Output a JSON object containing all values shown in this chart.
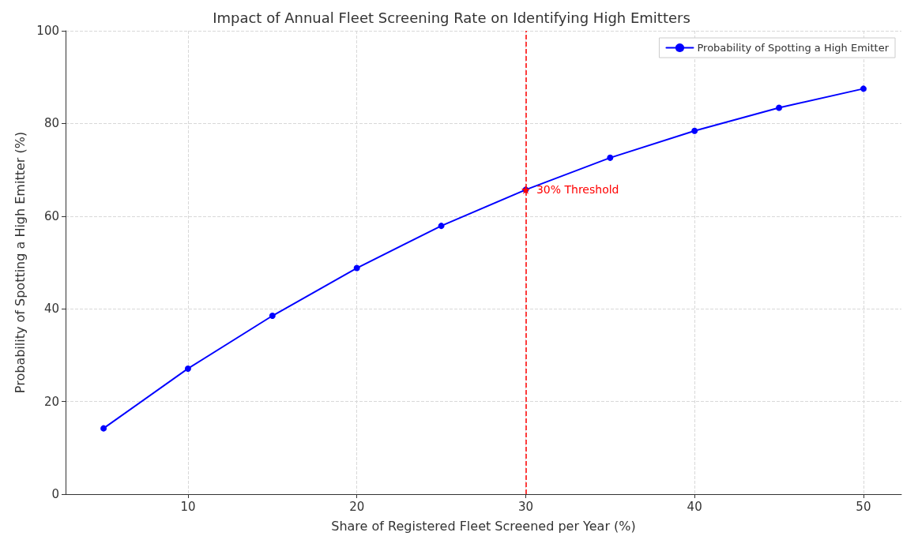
{
  "chart_data": {
    "type": "line",
    "title": "Impact of Annual Fleet Screening Rate on Identifying High Emitters",
    "xlabel": "Share of Registered Fleet Screened per Year (%)",
    "ylabel": "Probability of Spotting a High Emitter (%)",
    "x": [
      5,
      10,
      15,
      20,
      25,
      30,
      35,
      40,
      45,
      50
    ],
    "series": [
      {
        "name": "Probability of Spotting a High Emitter",
        "color": "#0000ff",
        "values": [
          14.2,
          27.1,
          38.5,
          48.8,
          57.9,
          65.7,
          72.6,
          78.4,
          83.4,
          87.5
        ]
      }
    ],
    "xlim": [
      2.75,
      52.25
    ],
    "xticks": [
      10,
      20,
      30,
      40,
      50
    ],
    "ylim": [
      0,
      100
    ],
    "yticks": [
      0,
      20,
      40,
      60,
      80,
      100
    ],
    "ref_lines": [
      {
        "axis": "x",
        "value": 30,
        "color": "#ff0000",
        "line_style": "dashed"
      }
    ],
    "annotations": [
      {
        "text": "30% Threshold",
        "x": 30,
        "y": 65.7
      }
    ],
    "grid": true,
    "legend": "top right",
    "marker": "circle",
    "line_style": "solid"
  }
}
